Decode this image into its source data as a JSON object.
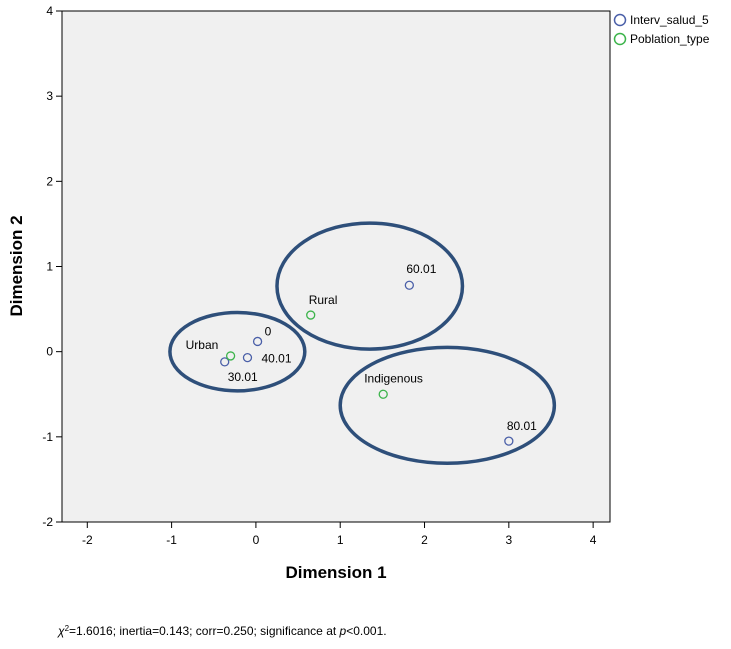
{
  "chart_data": {
    "type": "scatter",
    "xlabel": "Dimension 1",
    "ylabel": "Dimension 2",
    "xlim": [
      -2.3,
      4.2
    ],
    "ylim": [
      -2,
      4
    ],
    "x_ticks": [
      -2,
      -1,
      0,
      1,
      2,
      3,
      4
    ],
    "y_ticks": [
      -2,
      -1,
      0,
      1,
      2,
      3,
      4
    ],
    "x_tick_labels": [
      "-2",
      "-1",
      "0",
      "1",
      "2",
      "3",
      "4"
    ],
    "y_tick_labels": [
      "-2",
      "-1",
      "0",
      "1",
      "2",
      "3",
      "4"
    ],
    "grid": false,
    "legend_position": "top-right",
    "series": [
      {
        "name": "Interv_salud_5",
        "color": "#4a5fa8",
        "points": [
          {
            "label": "0",
            "x": 0.02,
            "y": 0.12
          },
          {
            "label": "40.01",
            "x": -0.1,
            "y": -0.07
          },
          {
            "label": "30.01",
            "x": -0.37,
            "y": -0.12
          },
          {
            "label": "60.01",
            "x": 1.82,
            "y": 0.78
          },
          {
            "label": "80.01",
            "x": 3.0,
            "y": -1.05
          }
        ]
      },
      {
        "name": "Poblation_type",
        "color": "#3cb44b",
        "points": [
          {
            "label": "Urban",
            "x": -0.3,
            "y": -0.05
          },
          {
            "label": "Rural",
            "x": 0.65,
            "y": 0.43
          },
          {
            "label": "Indigenous",
            "x": 1.51,
            "y": -0.5
          }
        ]
      }
    ],
    "ellipse_color": "#2e4f7a",
    "caption": {
      "chi_symbol": "χ",
      "sup": "2",
      "part1": "=1.6016; inertia=0.143; corr=0.250; significance at ",
      "p": "p",
      "part2": "<0.001."
    }
  }
}
